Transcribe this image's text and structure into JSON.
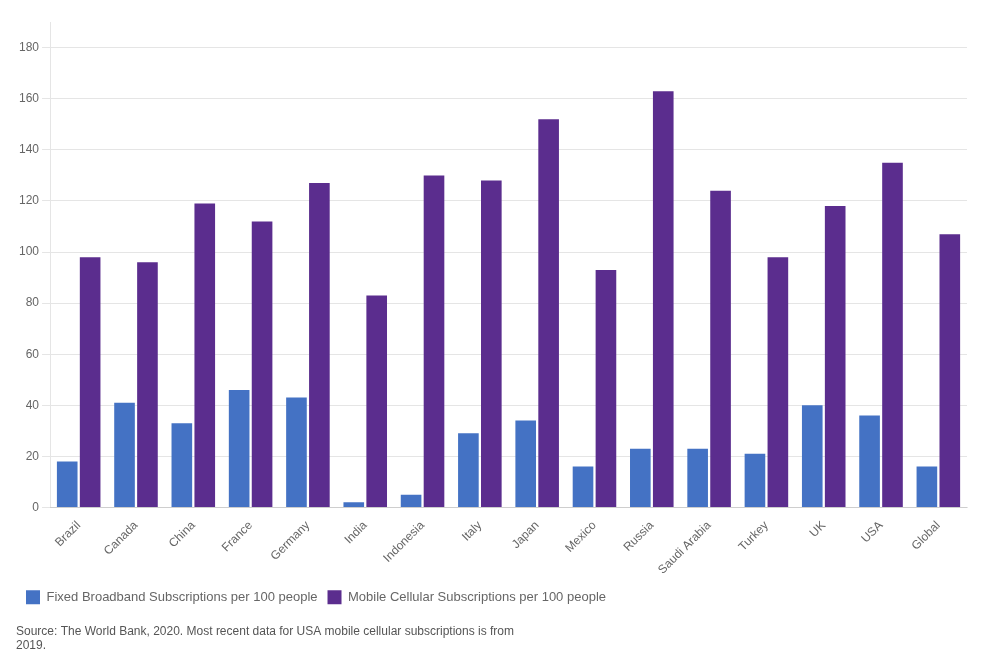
{
  "chart_data": {
    "type": "bar",
    "categories": [
      "Brazil",
      "Canada",
      "China",
      "France",
      "Germany",
      "India",
      "Indonesia",
      "Italy",
      "Japan",
      "Mexico",
      "Russia",
      "Saudi Arabia",
      "Turkey",
      "UK",
      "USA",
      "Global"
    ],
    "series": [
      {
        "name": "Fixed Broadband Subscriptions per 100 people",
        "color": "#4472c4",
        "values": [
          18,
          41,
          33,
          46,
          43,
          2,
          5,
          29,
          34,
          16,
          23,
          23,
          21,
          40,
          36,
          16
        ]
      },
      {
        "name": "Mobile Cellular Subscriptions per 100 people",
        "color": "#5b2d8e",
        "values": [
          98,
          96,
          119,
          112,
          127,
          83,
          130,
          128,
          152,
          93,
          163,
          124,
          98,
          118,
          135,
          107
        ]
      }
    ],
    "ylim": [
      0,
      190
    ],
    "yticks": [
      0,
      20,
      40,
      60,
      80,
      100,
      120,
      140,
      160,
      180
    ],
    "grid": "y",
    "legend": "lower left",
    "annotations": [
      "Source: The World Bank, 2020. Most recent data for USA mobile cellular subscriptions is from\n2019."
    ]
  }
}
